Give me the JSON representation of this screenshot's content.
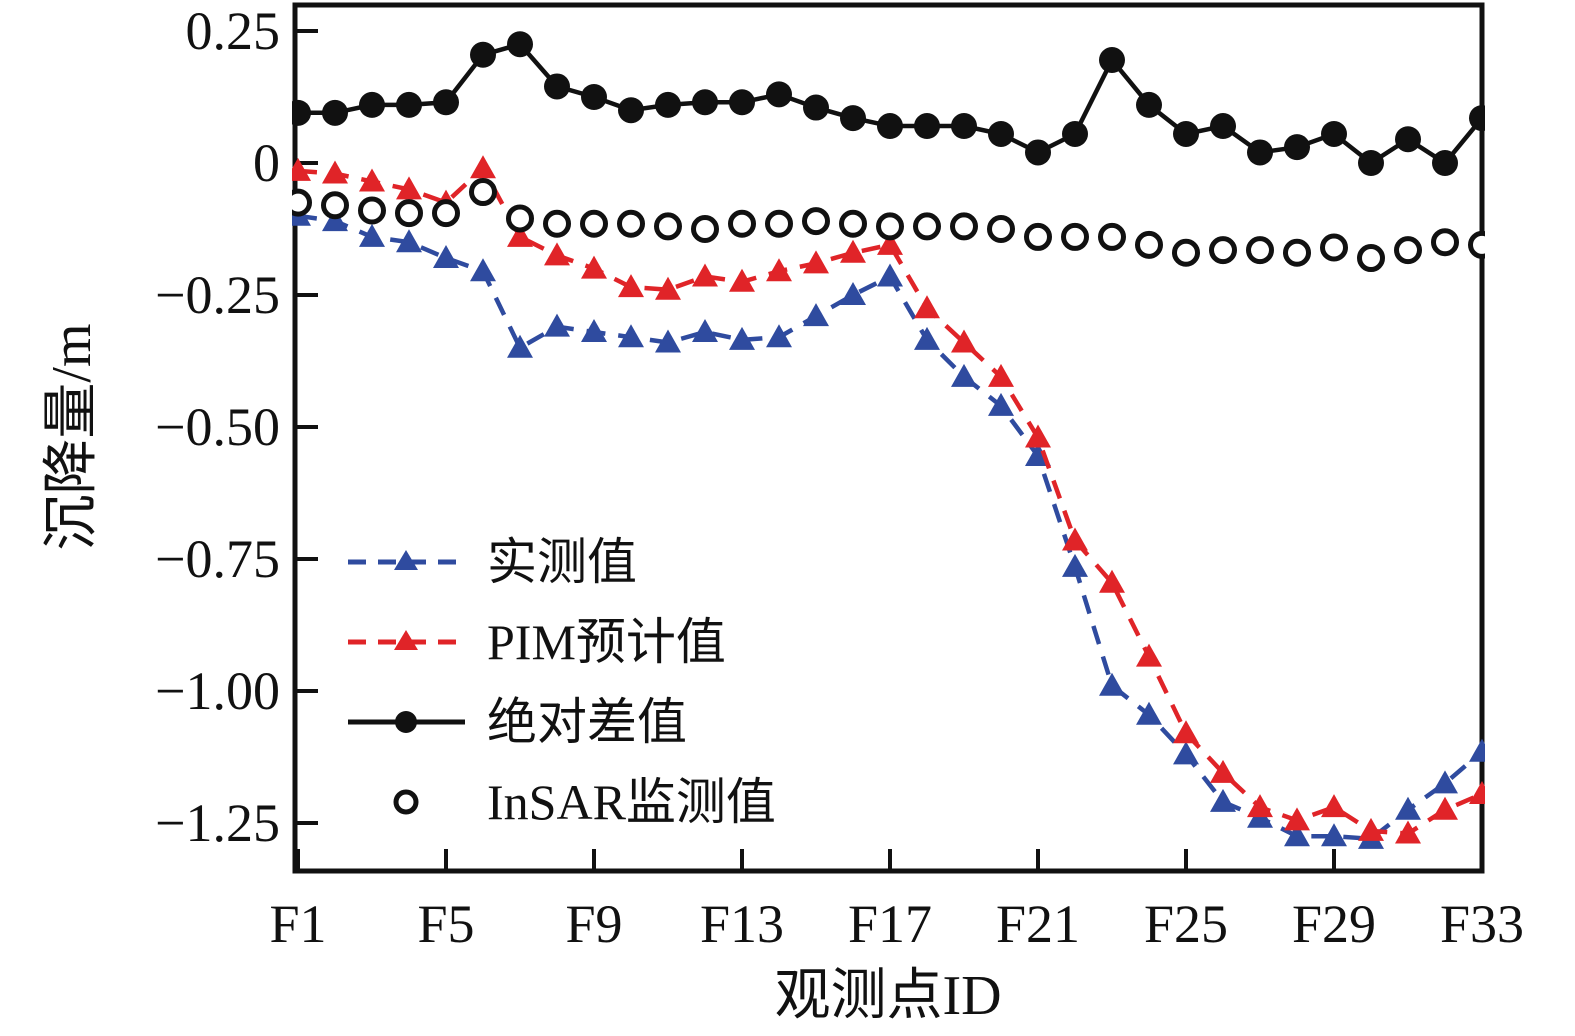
{
  "figure": {
    "background": "#ffffff",
    "frame_color": "#111111"
  },
  "chart_data": {
    "type": "line",
    "title": "",
    "xlabel": "观测点ID",
    "ylabel": "沉降量/m",
    "x_labels": [
      "F1",
      "F2",
      "F3",
      "F4",
      "F5",
      "F6",
      "F7",
      "F8",
      "F9",
      "F10",
      "F11",
      "F12",
      "F13",
      "F14",
      "F15",
      "F16",
      "F17",
      "F18",
      "F19",
      "F20",
      "F21",
      "F22",
      "F23",
      "F24",
      "F25",
      "F26",
      "F27",
      "F28",
      "F29",
      "F30",
      "F31",
      "F32",
      "F33"
    ],
    "x_tick_labels": [
      "F1",
      "F5",
      "F9",
      "F13",
      "F17",
      "F21",
      "F25",
      "F29",
      "F33"
    ],
    "x_tick_indices": [
      0,
      4,
      8,
      12,
      16,
      20,
      24,
      28,
      32
    ],
    "y_ticks": [
      0.25,
      0,
      -0.25,
      -0.5,
      -0.75,
      -1.0,
      -1.25
    ],
    "y_tick_labels": [
      "0.25",
      "0",
      "−0.25",
      "−0.50",
      "−0.75",
      "−1.00",
      "−1.25"
    ],
    "ylim": [
      -1.34,
      0.3
    ],
    "grid": false,
    "legend_position": "inside-left-middle",
    "series": [
      {
        "key": "measured-value",
        "name": "实测值",
        "color": "#2f4b9f",
        "line": "dashed",
        "marker": "triangle",
        "values": [
          -0.1,
          -0.11,
          -0.14,
          -0.15,
          -0.18,
          -0.205,
          -0.35,
          -0.31,
          -0.32,
          -0.33,
          -0.34,
          -0.32,
          -0.335,
          -0.33,
          -0.29,
          -0.25,
          -0.215,
          -0.335,
          -0.405,
          -0.46,
          -0.555,
          -0.765,
          -0.99,
          -1.045,
          -1.12,
          -1.21,
          -1.24,
          -1.275,
          -1.275,
          -1.28,
          -1.225,
          -1.175,
          -1.115
        ]
      },
      {
        "key": "pim-predicted-value",
        "name": "PIM预计值",
        "color": "#e02428",
        "line": "dashed",
        "marker": "triangle",
        "values": [
          -0.015,
          -0.02,
          -0.035,
          -0.05,
          -0.075,
          -0.01,
          -0.14,
          -0.175,
          -0.2,
          -0.235,
          -0.24,
          -0.215,
          -0.225,
          -0.205,
          -0.19,
          -0.17,
          -0.155,
          -0.275,
          -0.34,
          -0.405,
          -0.52,
          -0.715,
          -0.795,
          -0.935,
          -1.08,
          -1.155,
          -1.22,
          -1.245,
          -1.22,
          -1.265,
          -1.27,
          -1.225,
          -1.195
        ]
      },
      {
        "key": "absolute-difference",
        "name": "绝对差值",
        "color": "#111111",
        "line": "solid",
        "marker": "circle-filled",
        "values": [
          0.095,
          0.095,
          0.11,
          0.11,
          0.115,
          0.205,
          0.225,
          0.145,
          0.125,
          0.1,
          0.11,
          0.115,
          0.115,
          0.13,
          0.105,
          0.085,
          0.07,
          0.07,
          0.07,
          0.055,
          0.02,
          0.055,
          0.195,
          0.11,
          0.055,
          0.07,
          0.02,
          0.03,
          0.055,
          0.0,
          0.045,
          0.0,
          0.085
        ]
      },
      {
        "key": "insar-monitored-value",
        "name": "InSAR监测值",
        "color": "#111111",
        "line": "none",
        "marker": "circle-open",
        "values": [
          -0.075,
          -0.08,
          -0.09,
          -0.095,
          -0.095,
          -0.055,
          -0.105,
          -0.115,
          -0.115,
          -0.115,
          -0.12,
          -0.125,
          -0.115,
          -0.115,
          -0.11,
          -0.115,
          -0.12,
          -0.12,
          -0.12,
          -0.125,
          -0.14,
          -0.14,
          -0.14,
          -0.155,
          -0.17,
          -0.165,
          -0.165,
          -0.17,
          -0.16,
          -0.18,
          -0.165,
          -0.15,
          -0.155
        ]
      }
    ]
  }
}
